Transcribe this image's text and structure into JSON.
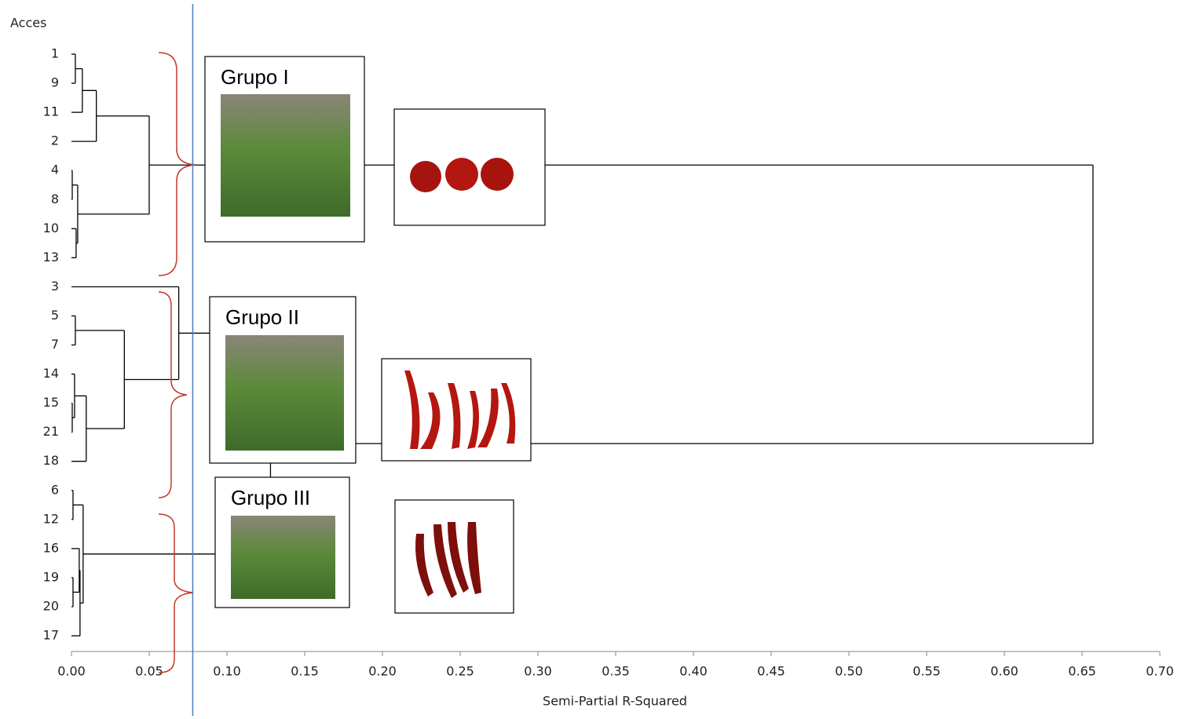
{
  "chart_data": {
    "type": "dendrogram",
    "y_label": "Acces",
    "x_label": "Semi-Partial R-Squared",
    "leaves": [
      "1",
      "9",
      "11",
      "2",
      "4",
      "8",
      "10",
      "13",
      "3",
      "5",
      "7",
      "14",
      "15",
      "21",
      "18",
      "6",
      "12",
      "16",
      "19",
      "20",
      "17"
    ],
    "merges": [
      {
        "children": [
          0,
          1
        ],
        "height": 0.0025
      },
      {
        "children": [
          21,
          2
        ],
        "height": 0.007
      },
      {
        "children": [
          22,
          3
        ],
        "height": 0.016
      },
      {
        "children": [
          4,
          5
        ],
        "height": 0.0005
      },
      {
        "children": [
          6,
          7
        ],
        "height": 0.003
      },
      {
        "children": [
          24,
          25
        ],
        "height": 0.004
      },
      {
        "children": [
          23,
          26
        ],
        "height": 0.05
      },
      {
        "children": [
          9,
          10
        ],
        "height": 0.0025
      },
      {
        "children": [
          12,
          13
        ],
        "height": 0.0005
      },
      {
        "children": [
          11,
          29
        ],
        "height": 0.002
      },
      {
        "children": [
          30,
          14
        ],
        "height": 0.0095
      },
      {
        "children": [
          28,
          31
        ],
        "height": 0.034
      },
      {
        "children": [
          8,
          32
        ],
        "height": 0.069
      },
      {
        "children": [
          15,
          16
        ],
        "height": 0.001
      },
      {
        "children": [
          18,
          19
        ],
        "height": 0.001
      },
      {
        "children": [
          17,
          35
        ],
        "height": 0.005
      },
      {
        "children": [
          36,
          20
        ],
        "height": 0.0055
      },
      {
        "children": [
          34,
          37
        ],
        "height": 0.0075
      },
      {
        "children": [
          33,
          38
        ],
        "height": 0.128
      },
      {
        "children": [
          27,
          39
        ],
        "height": 0.657
      }
    ],
    "xlim": [
      0,
      0.7
    ],
    "xticks": [
      {
        "value": 0,
        "label": "0.00"
      },
      {
        "value": 0.05,
        "label": "0.05"
      },
      {
        "value": 0.1,
        "label": "0.10"
      },
      {
        "value": 0.15,
        "label": "0.15"
      },
      {
        "value": 0.2,
        "label": "0.20"
      },
      {
        "value": 0.25,
        "label": "0.25"
      },
      {
        "value": 0.3,
        "label": "0.30"
      },
      {
        "value": 0.35,
        "label": "0.35"
      },
      {
        "value": 0.4,
        "label": "0.40"
      },
      {
        "value": 0.45,
        "label": "0.45"
      },
      {
        "value": 0.5,
        "label": "0.50"
      },
      {
        "value": 0.55,
        "label": "0.55"
      },
      {
        "value": 0.6,
        "label": "0.60"
      },
      {
        "value": 0.65,
        "label": "0.65"
      },
      {
        "value": 0.7,
        "label": "0.70"
      }
    ],
    "cut_height": 0.078,
    "cut_color": "#4a7ebb",
    "line_color": "#000000",
    "group_labels": [
      "Grupo I",
      "Grupo II",
      "Grupo III"
    ]
  }
}
